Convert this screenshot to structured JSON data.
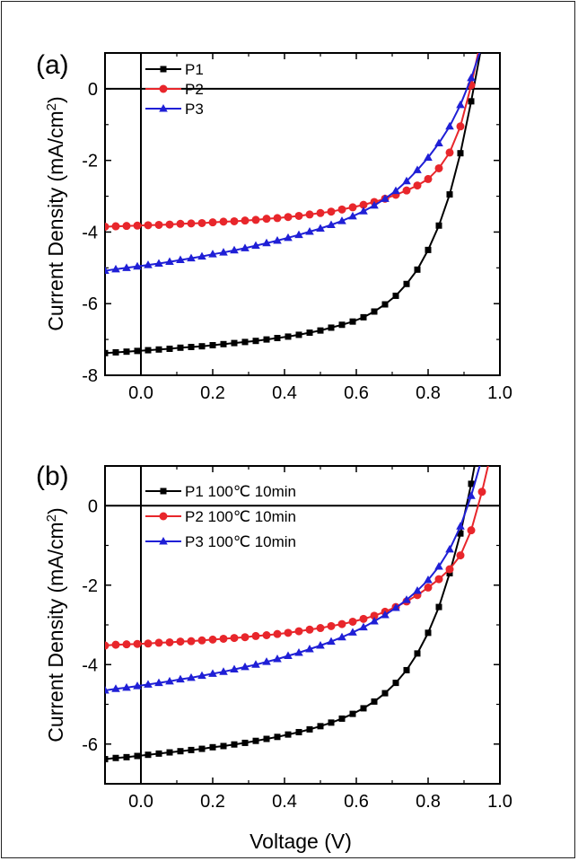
{
  "figure": {
    "xlabel": "Voltage (V)"
  },
  "chart_data": [
    {
      "type": "line",
      "panel_label": "(a)",
      "xlabel": "",
      "ylabel": "Current Density (mA/cm²)",
      "ylabel_main": "Current Density (mA/cm",
      "ylabel_sup": "2",
      "ylabel_end": ")",
      "xlim": [
        -0.1,
        1.0
      ],
      "ylim": [
        -8,
        1
      ],
      "xticks": [
        "0.0",
        "0.2",
        "0.4",
        "0.6",
        "0.8",
        "1.0"
      ],
      "yticks": [
        "-8",
        "-6",
        "-4",
        "-2",
        "0"
      ],
      "legend_position": "top-left",
      "series": [
        {
          "name": "P1",
          "color": "#000000",
          "marker": "square",
          "x": [
            -0.1,
            -0.07,
            -0.04,
            -0.01,
            0.02,
            0.05,
            0.08,
            0.11,
            0.14,
            0.17,
            0.2,
            0.23,
            0.26,
            0.29,
            0.32,
            0.35,
            0.38,
            0.41,
            0.44,
            0.47,
            0.5,
            0.53,
            0.56,
            0.59,
            0.62,
            0.65,
            0.68,
            0.71,
            0.74,
            0.77,
            0.8,
            0.83,
            0.86,
            0.89,
            0.92,
            0.95,
            0.98
          ],
          "y": [
            -7.38,
            -7.36,
            -7.34,
            -7.32,
            -7.3,
            -7.28,
            -7.26,
            -7.23,
            -7.21,
            -7.19,
            -7.16,
            -7.13,
            -7.1,
            -7.07,
            -7.04,
            -7.0,
            -6.96,
            -6.92,
            -6.87,
            -6.81,
            -6.75,
            -6.67,
            -6.59,
            -6.5,
            -6.38,
            -6.22,
            -6.02,
            -5.78,
            -5.45,
            -5.05,
            -4.5,
            -3.82,
            -2.95,
            -1.8,
            -0.35,
            1.25,
            3.0
          ]
        },
        {
          "name": "P2",
          "color": "#e8262b",
          "marker": "circle",
          "x": [
            -0.1,
            -0.07,
            -0.04,
            -0.01,
            0.02,
            0.05,
            0.08,
            0.11,
            0.14,
            0.17,
            0.2,
            0.23,
            0.26,
            0.29,
            0.32,
            0.35,
            0.38,
            0.41,
            0.44,
            0.47,
            0.5,
            0.53,
            0.56,
            0.59,
            0.62,
            0.65,
            0.68,
            0.71,
            0.74,
            0.77,
            0.8,
            0.83,
            0.86,
            0.89,
            0.92,
            0.95,
            0.98
          ],
          "y": [
            -3.85,
            -3.84,
            -3.83,
            -3.82,
            -3.81,
            -3.8,
            -3.79,
            -3.77,
            -3.76,
            -3.75,
            -3.73,
            -3.71,
            -3.7,
            -3.68,
            -3.66,
            -3.63,
            -3.61,
            -3.58,
            -3.55,
            -3.51,
            -3.47,
            -3.43,
            -3.37,
            -3.31,
            -3.24,
            -3.16,
            -3.07,
            -2.96,
            -2.84,
            -2.7,
            -2.52,
            -2.22,
            -1.78,
            -1.05,
            0.1,
            1.5,
            3.0
          ]
        },
        {
          "name": "P3",
          "color": "#1f1fd6",
          "marker": "triangle",
          "x": [
            -0.1,
            -0.07,
            -0.04,
            -0.01,
            0.02,
            0.05,
            0.08,
            0.11,
            0.14,
            0.17,
            0.2,
            0.23,
            0.26,
            0.29,
            0.32,
            0.35,
            0.38,
            0.41,
            0.44,
            0.47,
            0.5,
            0.53,
            0.56,
            0.59,
            0.62,
            0.65,
            0.68,
            0.71,
            0.74,
            0.77,
            0.8,
            0.83,
            0.86,
            0.89,
            0.92,
            0.95,
            0.98
          ],
          "y": [
            -5.08,
            -5.04,
            -5.0,
            -4.96,
            -4.92,
            -4.88,
            -4.83,
            -4.78,
            -4.73,
            -4.68,
            -4.62,
            -4.57,
            -4.51,
            -4.45,
            -4.38,
            -4.31,
            -4.24,
            -4.16,
            -4.08,
            -3.99,
            -3.9,
            -3.8,
            -3.69,
            -3.56,
            -3.42,
            -3.26,
            -3.07,
            -2.85,
            -2.58,
            -2.27,
            -1.92,
            -1.52,
            -1.05,
            -0.45,
            0.3,
            1.2,
            2.3
          ]
        }
      ]
    },
    {
      "type": "line",
      "panel_label": "(b)",
      "xlabel": "Voltage (V)",
      "ylabel": "Current Density (mA/cm²)",
      "ylabel_main": "Current Density (mA/cm",
      "ylabel_sup": "2",
      "ylabel_end": ")",
      "xlim": [
        -0.1,
        1.0
      ],
      "ylim": [
        -7,
        1
      ],
      "xticks": [
        "0.0",
        "0.2",
        "0.4",
        "0.6",
        "0.8",
        "1.0"
      ],
      "yticks": [
        "-6",
        "-4",
        "-2",
        "0"
      ],
      "legend_position": "top-left",
      "series": [
        {
          "name": "P1 100℃  10min",
          "color": "#000000",
          "marker": "square",
          "x": [
            -0.1,
            -0.07,
            -0.04,
            -0.01,
            0.02,
            0.05,
            0.08,
            0.11,
            0.14,
            0.17,
            0.2,
            0.23,
            0.26,
            0.29,
            0.32,
            0.35,
            0.38,
            0.41,
            0.44,
            0.47,
            0.5,
            0.53,
            0.56,
            0.59,
            0.62,
            0.65,
            0.68,
            0.71,
            0.74,
            0.77,
            0.8,
            0.83,
            0.86,
            0.89,
            0.92,
            0.95,
            0.98
          ],
          "y": [
            -6.38,
            -6.35,
            -6.33,
            -6.3,
            -6.27,
            -6.24,
            -6.21,
            -6.18,
            -6.15,
            -6.12,
            -6.08,
            -6.05,
            -6.01,
            -5.97,
            -5.92,
            -5.87,
            -5.82,
            -5.76,
            -5.7,
            -5.63,
            -5.55,
            -5.46,
            -5.36,
            -5.24,
            -5.1,
            -4.93,
            -4.72,
            -4.46,
            -4.14,
            -3.72,
            -3.2,
            -2.55,
            -1.7,
            -0.7,
            0.55,
            2.0,
            3.5
          ]
        },
        {
          "name": "P2 100℃  10min",
          "color": "#e8262b",
          "marker": "circle",
          "x": [
            -0.1,
            -0.07,
            -0.04,
            -0.01,
            0.02,
            0.05,
            0.08,
            0.11,
            0.14,
            0.17,
            0.2,
            0.23,
            0.26,
            0.29,
            0.32,
            0.35,
            0.38,
            0.41,
            0.44,
            0.47,
            0.5,
            0.53,
            0.56,
            0.59,
            0.62,
            0.65,
            0.68,
            0.71,
            0.74,
            0.77,
            0.8,
            0.83,
            0.86,
            0.89,
            0.92,
            0.95,
            0.98
          ],
          "y": [
            -3.52,
            -3.5,
            -3.49,
            -3.48,
            -3.47,
            -3.45,
            -3.44,
            -3.42,
            -3.41,
            -3.39,
            -3.37,
            -3.35,
            -3.33,
            -3.31,
            -3.28,
            -3.26,
            -3.23,
            -3.2,
            -3.16,
            -3.12,
            -3.08,
            -3.03,
            -2.98,
            -2.92,
            -2.85,
            -2.77,
            -2.67,
            -2.55,
            -2.41,
            -2.25,
            -2.06,
            -1.85,
            -1.6,
            -1.25,
            -0.62,
            0.35,
            1.5
          ]
        },
        {
          "name": "P3 100℃  10min",
          "color": "#1f1fd6",
          "marker": "triangle",
          "x": [
            -0.1,
            -0.07,
            -0.04,
            -0.01,
            0.02,
            0.05,
            0.08,
            0.11,
            0.14,
            0.17,
            0.2,
            0.23,
            0.26,
            0.29,
            0.32,
            0.35,
            0.38,
            0.41,
            0.44,
            0.47,
            0.5,
            0.53,
            0.56,
            0.59,
            0.62,
            0.65,
            0.68,
            0.71,
            0.74,
            0.77,
            0.8,
            0.83,
            0.86,
            0.89,
            0.92,
            0.95,
            0.98
          ],
          "y": [
            -4.65,
            -4.61,
            -4.58,
            -4.54,
            -4.5,
            -4.46,
            -4.42,
            -4.37,
            -4.33,
            -4.28,
            -4.23,
            -4.18,
            -4.12,
            -4.06,
            -4.0,
            -3.93,
            -3.86,
            -3.78,
            -3.7,
            -3.61,
            -3.52,
            -3.42,
            -3.31,
            -3.19,
            -3.06,
            -2.91,
            -2.75,
            -2.57,
            -2.37,
            -2.14,
            -1.87,
            -1.53,
            -1.1,
            -0.52,
            0.25,
            1.2,
            2.3
          ]
        }
      ]
    }
  ]
}
